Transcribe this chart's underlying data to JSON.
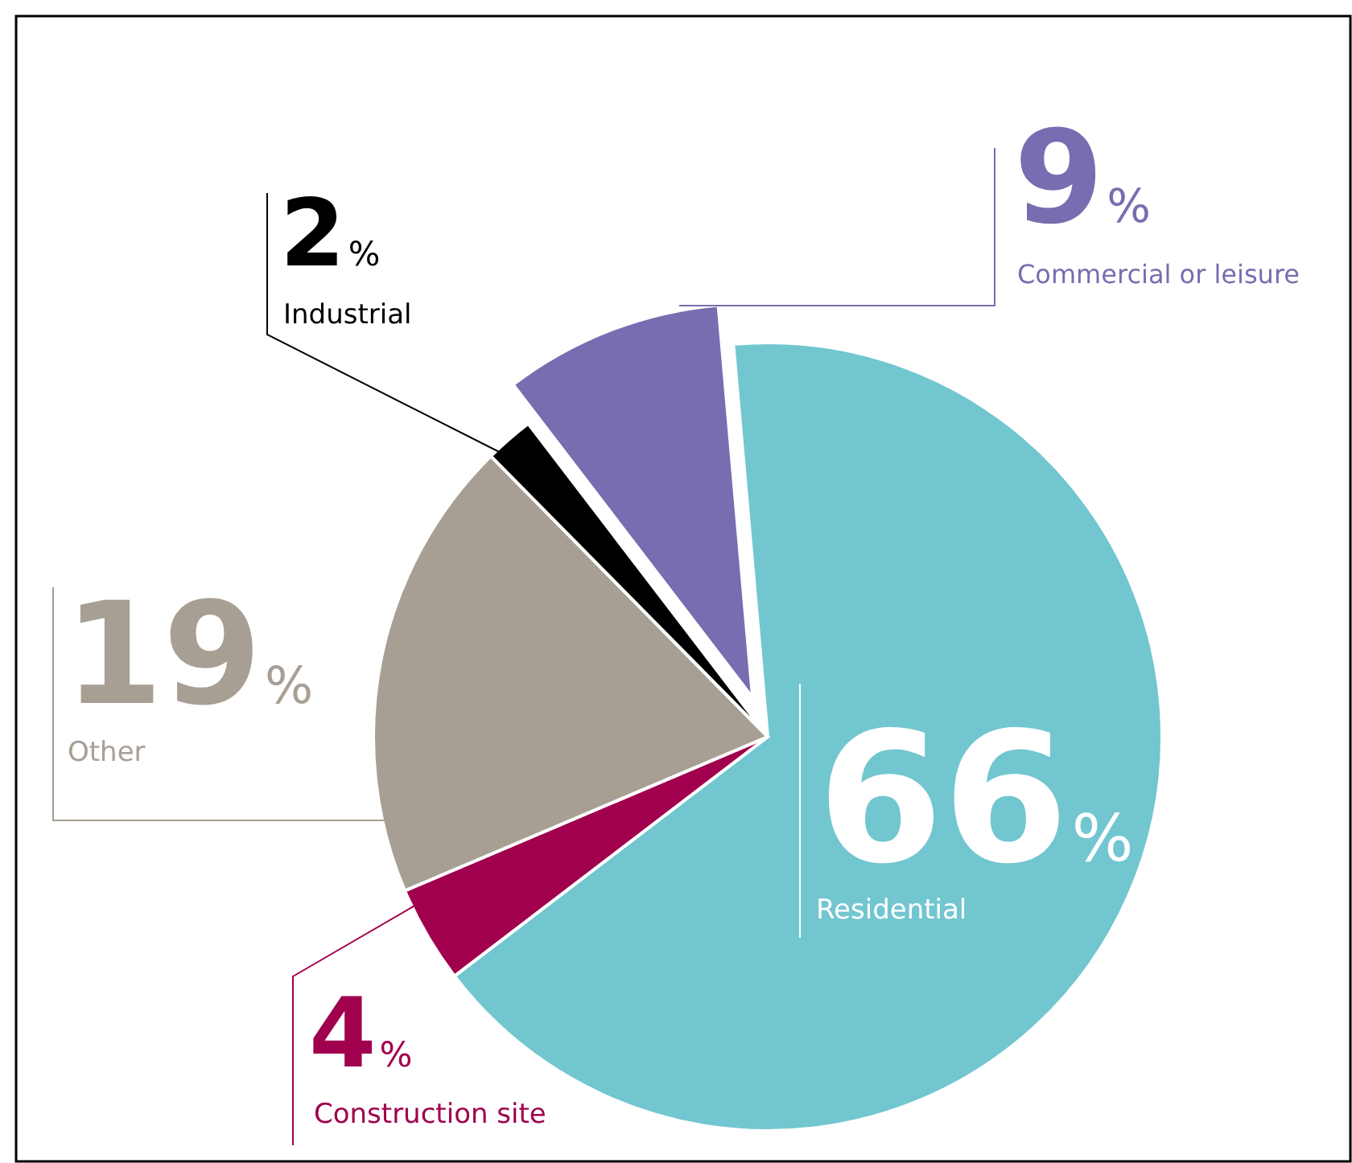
{
  "chart_data": {
    "type": "pie",
    "categories": [
      "Residential",
      "Construction site",
      "Other",
      "Industrial",
      "Commercial or leisure"
    ],
    "values": [
      66,
      4,
      19,
      2,
      9
    ],
    "value_labels": [
      "66%",
      "4%",
      "19%",
      "2%",
      "9%"
    ],
    "colors": [
      "#72c6d0",
      "#a0004d",
      "#a89f94",
      "#000000",
      "#7a6cb0"
    ]
  }
}
